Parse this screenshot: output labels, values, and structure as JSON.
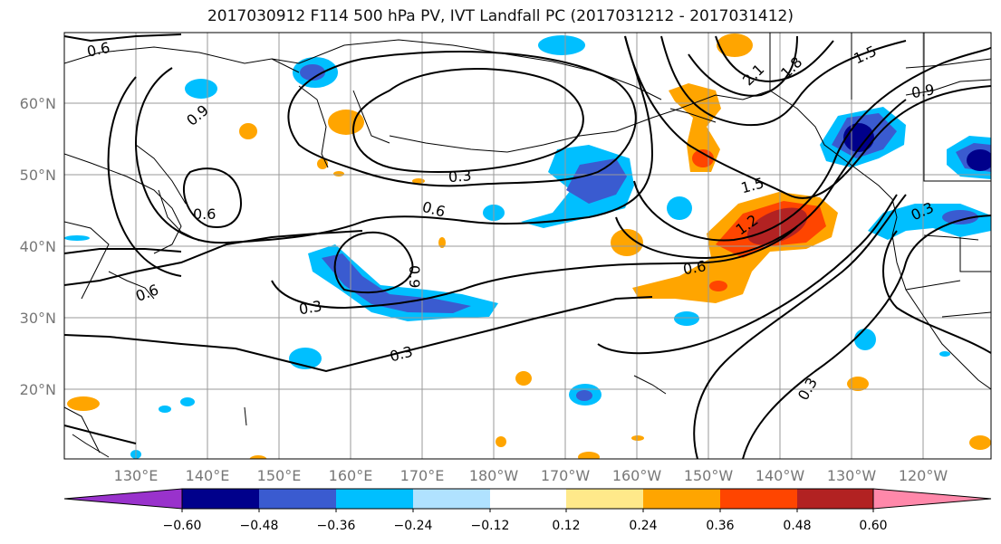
{
  "title": "2017030912 F114 500 hPa PV, IVT Landfall PC (2017031212 - 2017031412)",
  "lat_labels": [
    "60°N",
    "50°N",
    "40°N",
    "30°N",
    "20°N"
  ],
  "lon_labels": [
    "130°E",
    "140°E",
    "150°E",
    "160°E",
    "170°E",
    "180°W",
    "170°W",
    "160°W",
    "150°W",
    "140°W",
    "130°W",
    "120°W"
  ],
  "contour_labels": [
    "0.6",
    "0.9",
    "0.6",
    "0.3",
    "0.6",
    "0.9",
    "0.3",
    "0.3",
    "0.6",
    "1.2",
    "1.5",
    "2.1",
    "1.8",
    "1.5",
    "0.9",
    "0.3",
    "0.3",
    "0.6"
  ],
  "colorbar": {
    "ticks": [
      "−0.60",
      "−0.48",
      "−0.36",
      "−0.24",
      "−0.12",
      "0.12",
      "0.24",
      "0.36",
      "0.48",
      "0.60"
    ],
    "colors": [
      "#9932cc",
      "#00008b",
      "#3a5bd0",
      "#00bfff",
      "#b0e2ff",
      "#ffffff",
      "#ffe98a",
      "#ffa500",
      "#ff4500",
      "#b22222",
      "#ff88aa"
    ]
  },
  "fill_colors": {
    "purple": "#9932cc",
    "navy": "#00008b",
    "blue": "#3a5bd0",
    "sky": "#00bfff",
    "light": "#b0e2ff",
    "yellow": "#ffe98a",
    "orange": "#ffa500",
    "red": "#ff4500",
    "darkred": "#b22222",
    "pink": "#ff88aa"
  }
}
